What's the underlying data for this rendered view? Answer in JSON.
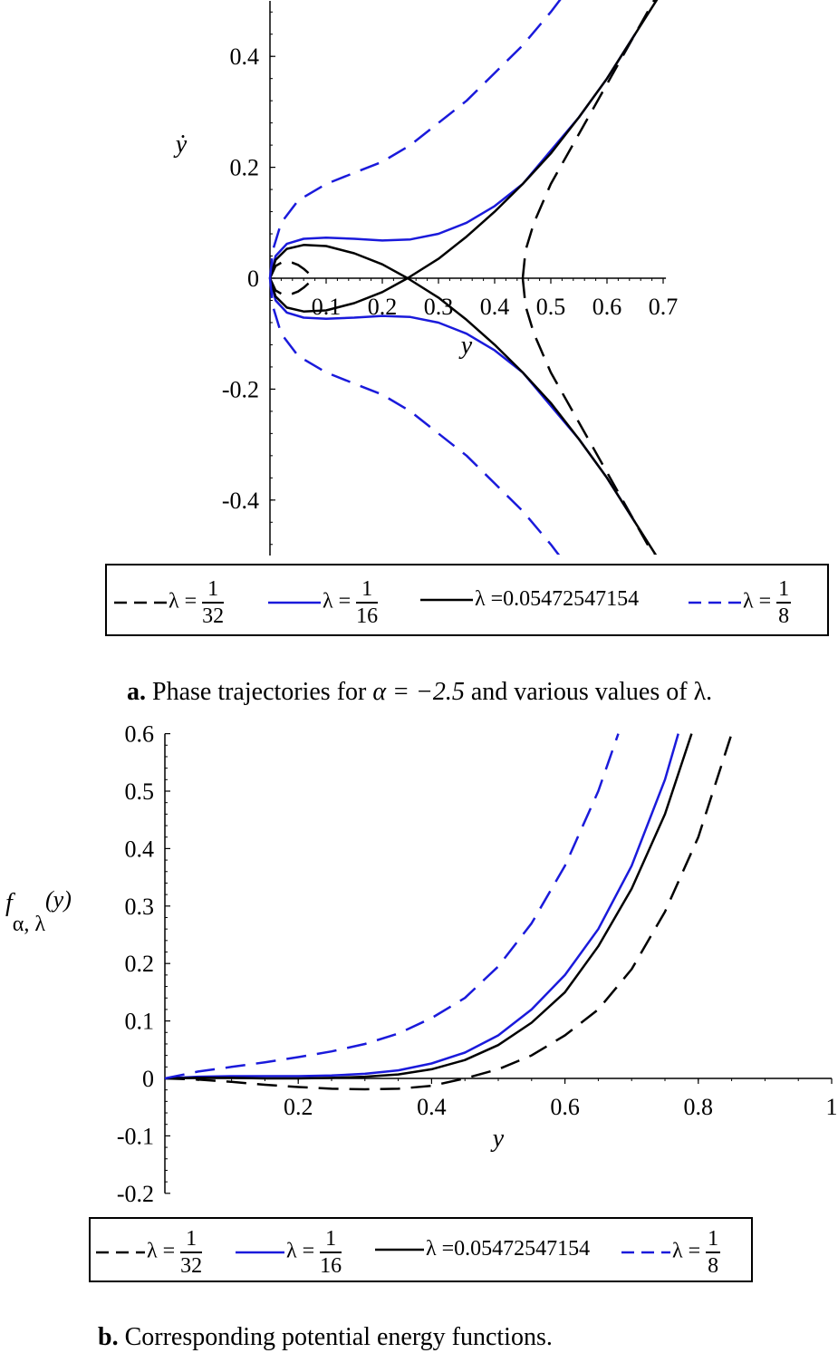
{
  "chart_data": [
    {
      "type": "line",
      "panel": "a",
      "xlabel": "y",
      "ylabel": "ẏ",
      "xlim": [
        0,
        0.72
      ],
      "ylim": [
        -0.5,
        0.5
      ],
      "xticks": [
        "0.1",
        "0.2",
        "0.3",
        "0.4",
        "0.5",
        "0.6",
        "0.7"
      ],
      "yticks": [
        "0.4",
        "0.2",
        "0",
        "-0.2",
        "-0.4"
      ],
      "grid": false,
      "legend_placement": "bottom",
      "caption_bold": "a.",
      "caption_text_before": "Phase trajectories for",
      "caption_math": "α = −2.5",
      "caption_text_after": "and various values of λ.",
      "series": [
        {
          "label": "λ = 1/32",
          "style": "dashed",
          "color": "#000000",
          "branches": [
            {
              "x": [
                0.0,
                0.01,
                0.02,
                0.03,
                0.04,
                0.05,
                0.06,
                0.07,
                0.075
              ],
              "y": [
                0.0,
                0.022,
                0.028,
                0.03,
                0.028,
                0.024,
                0.017,
                0.008,
                0.0
              ]
            },
            {
              "x": [
                0.0,
                0.01,
                0.02,
                0.03,
                0.04,
                0.05,
                0.06,
                0.07,
                0.075
              ],
              "y": [
                0.0,
                -0.022,
                -0.028,
                -0.03,
                -0.028,
                -0.024,
                -0.017,
                -0.008,
                0.0
              ]
            },
            {
              "x": [
                0.45,
                0.455,
                0.47,
                0.5,
                0.55,
                0.6,
                0.65,
                0.7
              ],
              "y": [
                0.0,
                0.05,
                0.1,
                0.17,
                0.26,
                0.35,
                0.44,
                0.53
              ]
            },
            {
              "x": [
                0.45,
                0.455,
                0.47,
                0.5,
                0.55,
                0.6,
                0.65,
                0.7
              ],
              "y": [
                0.0,
                -0.05,
                -0.1,
                -0.17,
                -0.26,
                -0.35,
                -0.44,
                -0.53
              ]
            }
          ]
        },
        {
          "label": "λ = 1/16",
          "style": "solid",
          "color": "#1a1adb",
          "branches": [
            {
              "x": [
                0.0,
                0.01,
                0.03,
                0.06,
                0.1,
                0.15,
                0.2,
                0.25,
                0.3,
                0.35,
                0.4,
                0.45,
                0.5,
                0.55,
                0.6,
                0.65
              ],
              "y": [
                0.0,
                0.04,
                0.062,
                0.071,
                0.073,
                0.071,
                0.068,
                0.07,
                0.08,
                0.1,
                0.13,
                0.17,
                0.23,
                0.29,
                0.36,
                0.44
              ]
            },
            {
              "x": [
                0.0,
                0.01,
                0.03,
                0.06,
                0.1,
                0.15,
                0.2,
                0.25,
                0.3,
                0.35,
                0.4,
                0.45,
                0.5,
                0.55,
                0.6,
                0.65
              ],
              "y": [
                0.0,
                -0.04,
                -0.062,
                -0.071,
                -0.073,
                -0.071,
                -0.068,
                -0.07,
                -0.08,
                -0.1,
                -0.13,
                -0.17,
                -0.23,
                -0.29,
                -0.36,
                -0.44
              ]
            }
          ]
        },
        {
          "label": "λ = 0.05472547154",
          "style": "solid",
          "color": "#000000",
          "branches": [
            {
              "x": [
                0.0,
                0.01,
                0.03,
                0.06,
                0.1,
                0.15,
                0.2,
                0.245,
                0.3,
                0.35,
                0.4,
                0.45,
                0.5,
                0.55,
                0.6,
                0.65,
                0.7
              ],
              "y": [
                0.0,
                0.033,
                0.053,
                0.06,
                0.058,
                0.045,
                0.025,
                0.0,
                -0.035,
                -0.075,
                -0.12,
                -0.17,
                -0.225,
                -0.29,
                -0.36,
                -0.44,
                -0.52
              ]
            },
            {
              "x": [
                0.0,
                0.01,
                0.03,
                0.06,
                0.1,
                0.15,
                0.2,
                0.245,
                0.3,
                0.35,
                0.4,
                0.45,
                0.5,
                0.55,
                0.6,
                0.65,
                0.7
              ],
              "y": [
                0.0,
                -0.033,
                -0.053,
                -0.06,
                -0.058,
                -0.045,
                -0.025,
                0.0,
                0.035,
                0.075,
                0.12,
                0.17,
                0.225,
                0.29,
                0.36,
                0.44,
                0.52
              ]
            }
          ]
        },
        {
          "label": "λ = 1/8",
          "style": "dashed",
          "color": "#1a1adb",
          "branches": [
            {
              "x": [
                0.0,
                0.005,
                0.02,
                0.05,
                0.1,
                0.15,
                0.2,
                0.25,
                0.3,
                0.35,
                0.4,
                0.45,
                0.5,
                0.53
              ],
              "y": [
                0.0,
                0.05,
                0.1,
                0.14,
                0.17,
                0.19,
                0.21,
                0.24,
                0.28,
                0.32,
                0.37,
                0.42,
                0.48,
                0.52
              ]
            },
            {
              "x": [
                0.0,
                0.005,
                0.02,
                0.05,
                0.1,
                0.15,
                0.2,
                0.25,
                0.3,
                0.35,
                0.4,
                0.45,
                0.5,
                0.53
              ],
              "y": [
                0.0,
                -0.05,
                -0.1,
                -0.14,
                -0.17,
                -0.19,
                -0.21,
                -0.24,
                -0.28,
                -0.32,
                -0.37,
                -0.42,
                -0.48,
                -0.52
              ]
            }
          ]
        }
      ]
    },
    {
      "type": "line",
      "panel": "b",
      "xlabel": "y",
      "ylabel_main": "f",
      "ylabel_sub": "α, λ",
      "ylabel_arg": "(y)",
      "xlim": [
        0,
        1
      ],
      "ylim": [
        -0.2,
        0.6
      ],
      "xticks": [
        "0.2",
        "0.4",
        "0.6",
        "0.8",
        "1"
      ],
      "yticks": [
        "0.6",
        "0.5",
        "0.4",
        "0.3",
        "0.2",
        "0.1",
        "0",
        "-0.1",
        "-0.2"
      ],
      "grid": false,
      "legend_placement": "bottom",
      "caption_bold": "b.",
      "caption_text": "Corresponding potential energy functions.",
      "series": [
        {
          "label": "λ = 1/32",
          "style": "dashed",
          "color": "#000000",
          "x": [
            0.0,
            0.05,
            0.1,
            0.15,
            0.2,
            0.25,
            0.3,
            0.35,
            0.4,
            0.45,
            0.5,
            0.55,
            0.6,
            0.65,
            0.7,
            0.75,
            0.8,
            0.85
          ],
          "y": [
            0.0,
            -0.002,
            -0.006,
            -0.011,
            -0.015,
            -0.018,
            -0.019,
            -0.018,
            -0.013,
            0.0,
            0.016,
            0.04,
            0.075,
            0.12,
            0.19,
            0.29,
            0.42,
            0.6
          ]
        },
        {
          "label": "λ = 1/16",
          "style": "solid",
          "color": "#1a1adb",
          "x": [
            0.0,
            0.05,
            0.1,
            0.15,
            0.2,
            0.25,
            0.3,
            0.35,
            0.4,
            0.45,
            0.5,
            0.55,
            0.6,
            0.65,
            0.7,
            0.75,
            0.77
          ],
          "y": [
            0.0,
            0.003,
            0.004,
            0.004,
            0.004,
            0.005,
            0.008,
            0.014,
            0.026,
            0.045,
            0.075,
            0.12,
            0.18,
            0.26,
            0.37,
            0.52,
            0.6
          ]
        },
        {
          "label": "λ = 0.05472547154",
          "style": "solid",
          "color": "#000000",
          "x": [
            0.0,
            0.05,
            0.1,
            0.15,
            0.2,
            0.25,
            0.3,
            0.35,
            0.4,
            0.45,
            0.5,
            0.55,
            0.6,
            0.65,
            0.7,
            0.75,
            0.79
          ],
          "y": [
            0.0,
            0.001,
            0.001,
            0.0,
            0.0,
            0.001,
            0.003,
            0.007,
            0.016,
            0.032,
            0.058,
            0.097,
            0.15,
            0.23,
            0.33,
            0.46,
            0.6
          ]
        },
        {
          "label": "λ = 1/8",
          "style": "dashed",
          "color": "#1a1adb",
          "x": [
            0.0,
            0.05,
            0.1,
            0.15,
            0.2,
            0.25,
            0.3,
            0.35,
            0.4,
            0.45,
            0.5,
            0.55,
            0.6,
            0.65,
            0.68
          ],
          "y": [
            0.0,
            0.012,
            0.02,
            0.028,
            0.037,
            0.047,
            0.06,
            0.078,
            0.105,
            0.14,
            0.195,
            0.27,
            0.37,
            0.5,
            0.6
          ]
        }
      ]
    }
  ],
  "legend": {
    "items": [
      {
        "prefix": "λ =",
        "num": "1",
        "den": "32",
        "value": ""
      },
      {
        "prefix": "λ =",
        "num": "1",
        "den": "16",
        "value": ""
      },
      {
        "prefix": "λ =",
        "num": "",
        "den": "",
        "value": "0.05472547154"
      },
      {
        "prefix": "λ =",
        "num": "1",
        "den": "8",
        "value": ""
      }
    ]
  }
}
